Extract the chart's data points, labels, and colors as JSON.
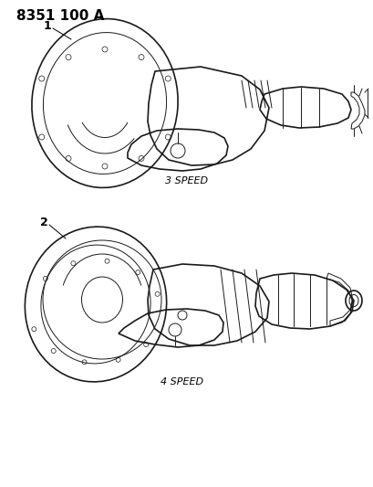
{
  "title": "8351 100 A",
  "label1": "1",
  "label2": "2",
  "label3speed": "3 SPEED",
  "label4speed": "4 SPEED",
  "bg_color": "#ffffff",
  "line_color": "#1a1a1a",
  "text_color": "#000000",
  "fig_width": 4.1,
  "fig_height": 5.33,
  "dpi": 100
}
